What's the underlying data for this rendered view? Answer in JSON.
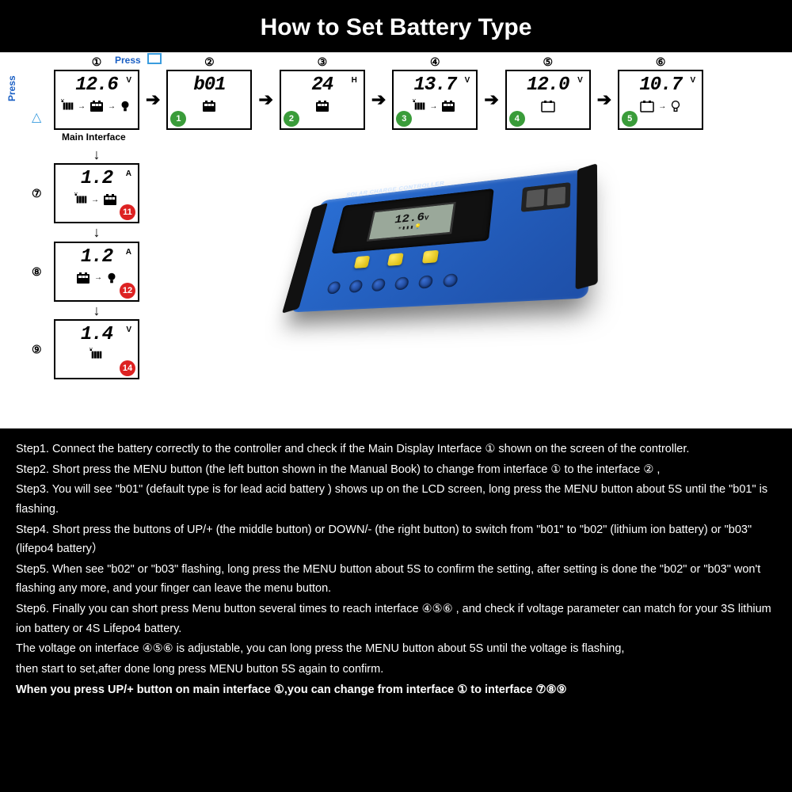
{
  "title": "How to Set Battery Type",
  "colors": {
    "bg": "#000000",
    "panel": "#ffffff",
    "text_light": "#ffffff",
    "text_dark": "#000000",
    "link_blue": "#1a5fc4",
    "badge_green": "#3a9c3a",
    "badge_red": "#d22222",
    "device_blue": "#2a6fd4",
    "device_blue2": "#1e4fa8",
    "button_yellow": "#f4d418",
    "lcd_bg": "#9aa89a"
  },
  "press_labels": {
    "top": "Press",
    "left": "Press"
  },
  "main_interface_label": "Main Interface",
  "top_screens": [
    {
      "num": "①",
      "value": "12.6",
      "unit": "V",
      "icons": "solar-batt-bulb",
      "badge": null
    },
    {
      "num": "②",
      "value": "b01",
      "unit": "",
      "icons": "batt",
      "badge": {
        "txt": "1",
        "cls": "green"
      }
    },
    {
      "num": "③",
      "value": "24",
      "unit": "H",
      "icons": "batt",
      "badge": {
        "txt": "2",
        "cls": "green"
      }
    },
    {
      "num": "④",
      "value": "13.7",
      "unit": "V",
      "icons": "solar-batt",
      "badge": {
        "txt": "3",
        "cls": "green"
      }
    },
    {
      "num": "⑤",
      "value": "12.0",
      "unit": "V",
      "icons": "batt-outline",
      "badge": {
        "txt": "4",
        "cls": "green"
      }
    },
    {
      "num": "⑥",
      "value": "10.7",
      "unit": "V",
      "icons": "batt-bulb-o",
      "badge": {
        "txt": "5",
        "cls": "green"
      }
    }
  ],
  "left_screens": [
    {
      "num": "⑦",
      "value": "1.2",
      "unit": "A",
      "icons": "solar-batt",
      "badge": {
        "txt": "11",
        "cls": "red"
      }
    },
    {
      "num": "⑧",
      "value": "1.2",
      "unit": "A",
      "icons": "batt-bulb",
      "badge": {
        "txt": "12",
        "cls": "red"
      }
    },
    {
      "num": "⑨",
      "value": "1.4",
      "unit": "V",
      "icons": "solar",
      "badge": {
        "txt": "14",
        "cls": "red"
      }
    }
  ],
  "device": {
    "label": "SOLAR CHARGE CONTROLLER",
    "lcd_value": "12.6",
    "lcd_unit": "V",
    "button_count": 3,
    "terminal_count": 6,
    "usb_ports": 2
  },
  "steps": [
    "Step1. Connect the battery correctly to the controller and check if the Main Display Interface ①  shown on the screen of the controller.",
    "Step2. Short press the MENU button (the left button shown in the Manual Book) to change from interface ①  to the interface ② ,",
    "Step3. You will see \"b01\" (default type is for lead acid battery ) shows up on the LCD screen, long press the MENU button about 5S until the \"b01\" is flashing.",
    "Step4. Short press the buttons of UP/+ (the middle button) or DOWN/- (the right button) to switch from \"b01\" to \"b02\" (lithium ion battery) or \"b03\" (lifepo4 battery）",
    "Step5. When see \"b02\" or \"b03\" flashing, long press the MENU button about 5S to confirm the setting, after setting is done the \"b02\" or \"b03\"  won't flashing any more, and your finger can leave the menu button.",
    "Step6. Finally you can short press Menu button several times to reach interface ④⑤⑥ , and check if voltage parameter can match for your 3S lithium ion battery or 4S Lifepo4 battery.",
    "The voltage on  interface  ④⑤⑥ is adjustable, you can long press the MENU button about 5S until the voltage is flashing,",
    "then start to set,after done long press MENU button 5S again to confirm."
  ],
  "final_note": "When you press UP/+ button on main interface ①,you can change from interface ① to interface ⑦⑧⑨"
}
